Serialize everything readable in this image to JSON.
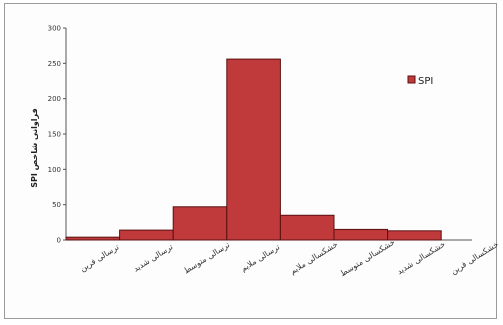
{
  "chart_data": {
    "type": "bar",
    "ylabel": "SPI فراوانی شاخص",
    "ylim": [
      0,
      300
    ],
    "yticks": [
      "0",
      "50",
      "100",
      "150",
      "200",
      "250",
      "300"
    ],
    "categories": [
      "ترسالی فرین",
      "ترسالی شدید",
      "ترسالی متوسط",
      "ترسالی ملایم",
      "خشکسالی ملایم",
      "خشکسالی متوسط",
      "خشکسالی شدید",
      "خشکسالی فرین"
    ],
    "series": [
      {
        "name": "SPI",
        "values": [
          4,
          14,
          47,
          256,
          35,
          15,
          13,
          0
        ]
      }
    ],
    "bar_color": "#c0393b",
    "bar_edge": "#5a1010",
    "grid": false,
    "legend_position": "top-right"
  }
}
